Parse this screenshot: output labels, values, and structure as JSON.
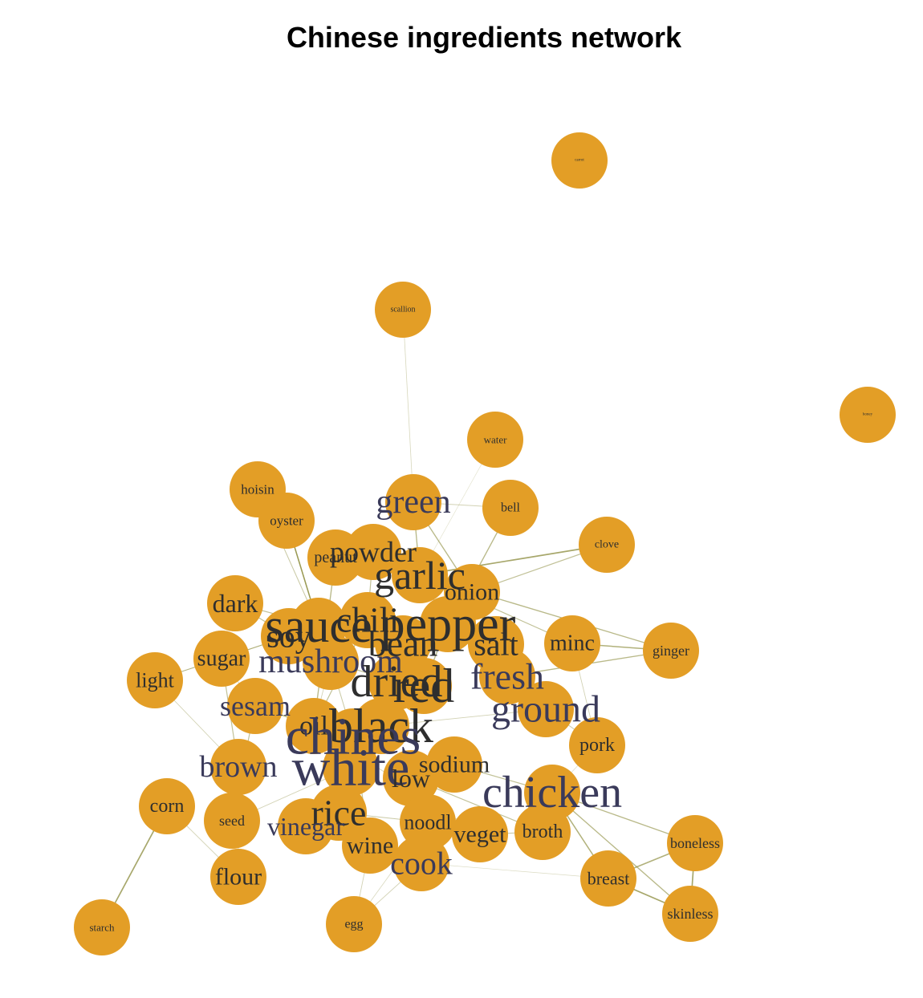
{
  "title": "Chinese ingredients network",
  "colors": {
    "node_fill": "#E39E26",
    "label_dark": "#3A3A5A",
    "label_light": "#2E2E2E",
    "edge": "#8A8A3A"
  },
  "nodes": [
    {
      "id": "carrot",
      "label": "carrot",
      "tone": "light"
    },
    {
      "id": "scallion",
      "label": "scallion",
      "tone": "light"
    },
    {
      "id": "honey",
      "label": "honey",
      "tone": "light"
    },
    {
      "id": "water",
      "label": "water",
      "tone": "light"
    },
    {
      "id": "hoisin",
      "label": "hoisin",
      "tone": "light"
    },
    {
      "id": "green",
      "label": "green",
      "tone": "dark"
    },
    {
      "id": "bell",
      "label": "bell",
      "tone": "light"
    },
    {
      "id": "oyster",
      "label": "oyster",
      "tone": "light"
    },
    {
      "id": "clove",
      "label": "clove",
      "tone": "light"
    },
    {
      "id": "powder",
      "label": "powder",
      "tone": "light"
    },
    {
      "id": "peanut",
      "label": "peanut",
      "tone": "light"
    },
    {
      "id": "garlic",
      "label": "garlic",
      "tone": "light"
    },
    {
      "id": "onion",
      "label": "onion",
      "tone": "light"
    },
    {
      "id": "dark",
      "label": "dark",
      "tone": "light"
    },
    {
      "id": "chili",
      "label": "chili",
      "tone": "light"
    },
    {
      "id": "sauce",
      "label": "sauce",
      "tone": "light"
    },
    {
      "id": "pepper",
      "label": "pepper",
      "tone": "light"
    },
    {
      "id": "soy",
      "label": "soy",
      "tone": "light"
    },
    {
      "id": "bean",
      "label": "bean",
      "tone": "light"
    },
    {
      "id": "salt",
      "label": "salt",
      "tone": "light"
    },
    {
      "id": "minc",
      "label": "minc",
      "tone": "light"
    },
    {
      "id": "ginger",
      "label": "ginger",
      "tone": "light"
    },
    {
      "id": "sugar",
      "label": "sugar",
      "tone": "light"
    },
    {
      "id": "mushroom",
      "label": "mushroom",
      "tone": "dark"
    },
    {
      "id": "light",
      "label": "light",
      "tone": "light"
    },
    {
      "id": "fresh",
      "label": "fresh",
      "tone": "dark"
    },
    {
      "id": "dried",
      "label": "dried",
      "tone": "light"
    },
    {
      "id": "red",
      "label": "red",
      "tone": "light"
    },
    {
      "id": "sesam",
      "label": "sesam",
      "tone": "dark"
    },
    {
      "id": "ground",
      "label": "ground",
      "tone": "dark"
    },
    {
      "id": "oil",
      "label": "oil",
      "tone": "light"
    },
    {
      "id": "black",
      "label": "black",
      "tone": "light"
    },
    {
      "id": "chines",
      "label": "chines",
      "tone": "dark"
    },
    {
      "id": "pork",
      "label": "pork",
      "tone": "light"
    },
    {
      "id": "white",
      "label": "white",
      "tone": "dark"
    },
    {
      "id": "brown",
      "label": "brown",
      "tone": "dark"
    },
    {
      "id": "sodium",
      "label": "sodium",
      "tone": "light"
    },
    {
      "id": "low",
      "label": "low",
      "tone": "light"
    },
    {
      "id": "chicken",
      "label": "chicken",
      "tone": "dark"
    },
    {
      "id": "corn",
      "label": "corn",
      "tone": "light"
    },
    {
      "id": "rice",
      "label": "rice",
      "tone": "light"
    },
    {
      "id": "seed",
      "label": "seed",
      "tone": "light"
    },
    {
      "id": "vinegar",
      "label": "vinegar",
      "tone": "dark"
    },
    {
      "id": "noodl",
      "label": "noodl",
      "tone": "light"
    },
    {
      "id": "veget",
      "label": "veget",
      "tone": "light"
    },
    {
      "id": "broth",
      "label": "broth",
      "tone": "light"
    },
    {
      "id": "wine",
      "label": "wine",
      "tone": "light"
    },
    {
      "id": "boneless",
      "label": "boneless",
      "tone": "light"
    },
    {
      "id": "cook",
      "label": "cook",
      "tone": "dark"
    },
    {
      "id": "flour",
      "label": "flour",
      "tone": "light"
    },
    {
      "id": "breast",
      "label": "breast",
      "tone": "light"
    },
    {
      "id": "skinless",
      "label": "skinless",
      "tone": "light"
    },
    {
      "id": "starch",
      "label": "starch",
      "tone": "light"
    },
    {
      "id": "egg",
      "label": "egg",
      "tone": "light"
    }
  ],
  "edges": [
    [
      "scallion",
      "green",
      0.25
    ],
    [
      "green",
      "garlic",
      0.6
    ],
    [
      "green",
      "onion",
      0.6
    ],
    [
      "green",
      "bell",
      0.3
    ],
    [
      "bell",
      "pepper",
      0.6
    ],
    [
      "clove",
      "garlic",
      0.8
    ],
    [
      "clove",
      "onion",
      0.5
    ],
    [
      "hoisin",
      "sauce",
      0.4
    ],
    [
      "oyster",
      "sauce",
      0.7
    ],
    [
      "powder",
      "garlic",
      0.5
    ],
    [
      "powder",
      "chili",
      0.5
    ],
    [
      "peanut",
      "oil",
      0.6
    ],
    [
      "garlic",
      "minc",
      0.5
    ],
    [
      "garlic",
      "ginger",
      0.6
    ],
    [
      "garlic",
      "pepper",
      0.5
    ],
    [
      "dark",
      "soy",
      0.5
    ],
    [
      "dark",
      "sauce",
      0.5
    ],
    [
      "soy",
      "sauce",
      0.9
    ],
    [
      "soy",
      "light",
      0.4
    ],
    [
      "sauce",
      "chili",
      0.5
    ],
    [
      "sauce",
      "bean",
      0.5
    ],
    [
      "sauce",
      "oyster",
      0.6
    ],
    [
      "pepper",
      "red",
      0.6
    ],
    [
      "pepper",
      "black",
      0.5
    ],
    [
      "pepper",
      "white",
      0.5
    ],
    [
      "pepper",
      "ground",
      0.5
    ],
    [
      "salt",
      "pepper",
      0.5
    ],
    [
      "minc",
      "ginger",
      0.7
    ],
    [
      "minc",
      "pork",
      0.3
    ],
    [
      "fresh",
      "ginger",
      0.6
    ],
    [
      "sugar",
      "brown",
      0.5
    ],
    [
      "sugar",
      "sesam",
      0.3
    ],
    [
      "light",
      "brown",
      0.3
    ],
    [
      "mushroom",
      "dried",
      0.5
    ],
    [
      "mushroom",
      "chines",
      0.4
    ],
    [
      "dried",
      "red",
      0.5
    ],
    [
      "red",
      "chili",
      0.5
    ],
    [
      "sesam",
      "oil",
      0.7
    ],
    [
      "sesam",
      "seed",
      0.5
    ],
    [
      "ground",
      "pork",
      0.4
    ],
    [
      "black",
      "bean",
      0.5
    ],
    [
      "black",
      "chines",
      0.4
    ],
    [
      "chines",
      "rice",
      0.5
    ],
    [
      "chines",
      "wine",
      0.5
    ],
    [
      "white",
      "rice",
      0.5
    ],
    [
      "white",
      "vinegar",
      0.4
    ],
    [
      "sodium",
      "low",
      0.7
    ],
    [
      "sodium",
      "chicken",
      0.5
    ],
    [
      "low",
      "broth",
      0.5
    ],
    [
      "chicken",
      "broth",
      0.7
    ],
    [
      "chicken",
      "boneless",
      0.6
    ],
    [
      "chicken",
      "breast",
      0.7
    ],
    [
      "chicken",
      "skinless",
      0.6
    ],
    [
      "boneless",
      "skinless",
      0.8
    ],
    [
      "boneless",
      "breast",
      0.7
    ],
    [
      "breast",
      "skinless",
      0.8
    ],
    [
      "rice",
      "vinegar",
      0.6
    ],
    [
      "rice",
      "wine",
      0.6
    ],
    [
      "rice",
      "noodl",
      0.4
    ],
    [
      "corn",
      "starch",
      0.8
    ],
    [
      "corn",
      "flour",
      0.3
    ],
    [
      "cook",
      "wine",
      0.4
    ],
    [
      "cook",
      "egg",
      0.3
    ],
    [
      "wine",
      "egg",
      0.3
    ],
    [
      "veget",
      "oil",
      0.3
    ],
    [
      "veget",
      "broth",
      0.4
    ],
    [
      "noodl",
      "egg",
      0.25
    ],
    [
      "flour",
      "brown",
      0.3
    ],
    [
      "seed",
      "white",
      0.3
    ],
    [
      "cook",
      "breast",
      0.2
    ],
    [
      "water",
      "garlic",
      0.15
    ],
    [
      "powder",
      "peanut",
      0.3
    ],
    [
      "sauce",
      "sugar",
      0.4
    ],
    [
      "mushroom",
      "oil",
      0.3
    ],
    [
      "chili",
      "oil",
      0.5
    ],
    [
      "fresh",
      "ground",
      0.3
    ],
    [
      "black",
      "ground",
      0.3
    ],
    [
      "pork",
      "chicken",
      0.2
    ],
    [
      "light",
      "sugar",
      0.3
    ]
  ]
}
